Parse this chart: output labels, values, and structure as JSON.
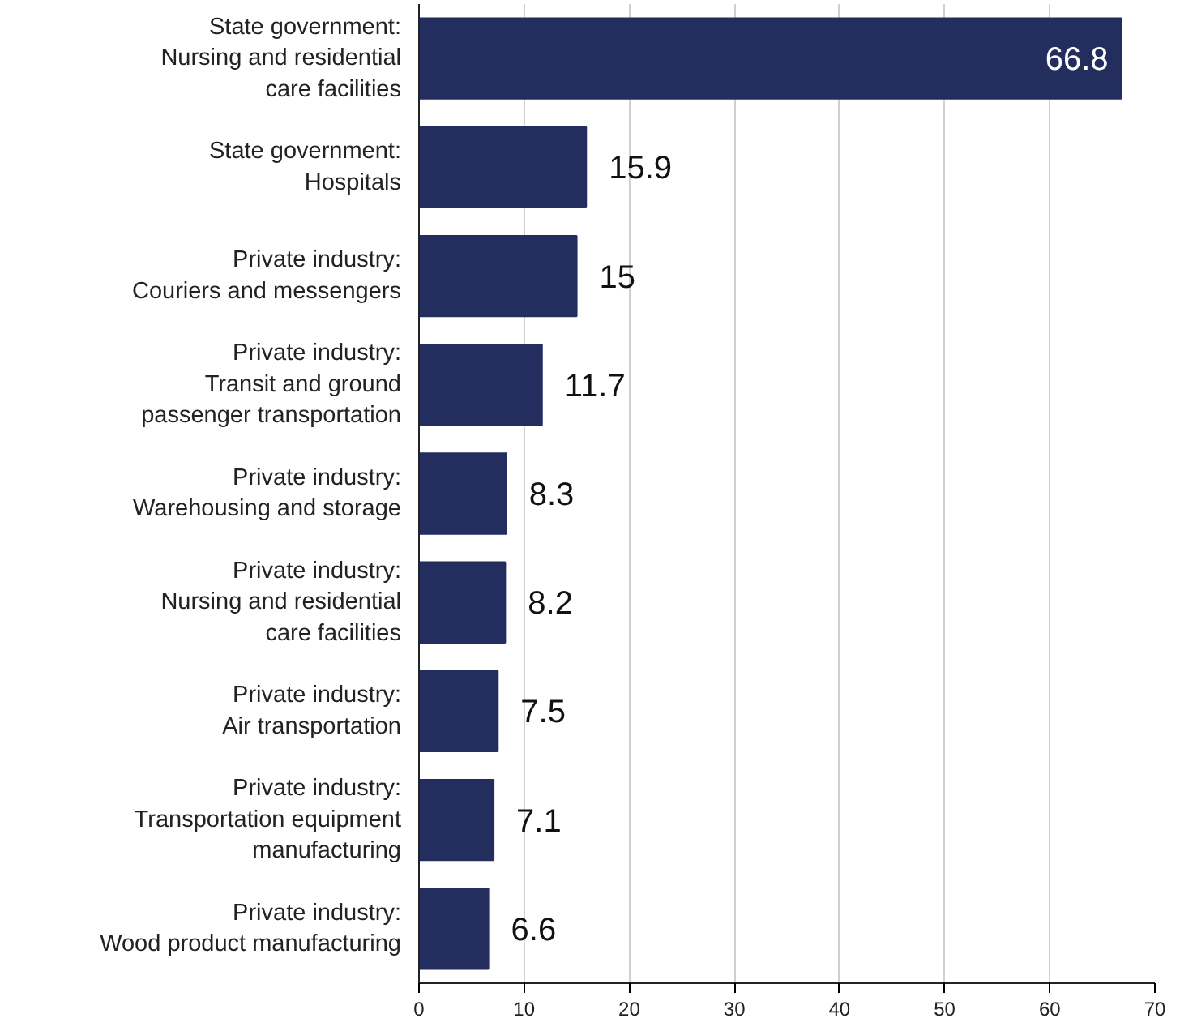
{
  "chart_data": {
    "type": "bar",
    "orientation": "horizontal",
    "categories": [
      "State government:\nNursing and residential\ncare facilities",
      "State government:\nHospitals",
      "Private industry:\nCouriers and messengers",
      "Private industry:\nTransit and ground\npassenger transportation",
      "Private industry:\nWarehousing and storage",
      "Private industry:\nNursing and residential\ncare facilities",
      "Private industry:\nAir transportation",
      "Private industry:\nTransportation equipment\nmanufacturing",
      "Private industry:\nWood product manufacturing"
    ],
    "values": [
      66.8,
      15.9,
      15,
      11.7,
      8.3,
      8.2,
      7.5,
      7.1,
      6.6
    ],
    "color": "#232d5e",
    "xlim": [
      0,
      70
    ],
    "xticks": [
      0,
      10,
      20,
      30,
      40,
      50,
      60,
      70
    ],
    "grid": "x",
    "data_labels": true
  }
}
